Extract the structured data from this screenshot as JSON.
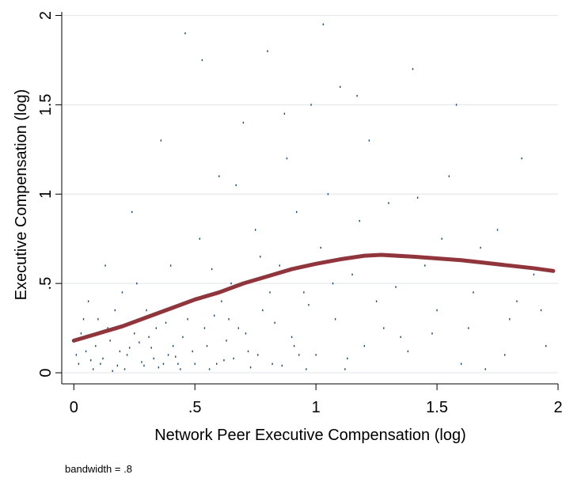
{
  "chart_data": {
    "type": "scatter",
    "x_label": "Network Peer Executive Compensation (log)",
    "y_label": "Executive Compensation (log)",
    "note": "bandwidth = .8",
    "xlim": [
      -0.05,
      2.0
    ],
    "ylim": [
      -0.062,
      2.02
    ],
    "xticks": [
      0,
      {
        "value": 0.5,
        "label": ".5"
      },
      1,
      1.5,
      2
    ],
    "yticks": [
      0,
      {
        "value": 0.5,
        "label": ".5"
      },
      1,
      1.5,
      2
    ],
    "grid": true,
    "series": [
      {
        "type": "scatter",
        "color": "#1a476f",
        "x": [
          0.02,
          0.05,
          0.08,
          0.1,
          0.12,
          0.15,
          0.18,
          0.2,
          0.22,
          0.25,
          0.28,
          0.3,
          0.32,
          0.35,
          0.38,
          0.4,
          0.42,
          0.45,
          0.48,
          0.5,
          0.52,
          0.55,
          0.58,
          0.6,
          0.62,
          0.65,
          0.68,
          0.7,
          0.72,
          0.75,
          0.78,
          0.8,
          0.82,
          0.85,
          0.88,
          0.9,
          0.92,
          0.95,
          0.98,
          1.0,
          1.02,
          1.05,
          1.08,
          1.1,
          1.12,
          1.15,
          1.18,
          1.2,
          1.22,
          1.25,
          1.3,
          1.35,
          1.4,
          1.45,
          1.5,
          1.55,
          1.6,
          1.65,
          1.7,
          1.75,
          1.8,
          1.85,
          1.9,
          1.95,
          0.03,
          0.06,
          0.09,
          0.13,
          0.16,
          0.19,
          0.24,
          0.27,
          0.33,
          0.36,
          0.44,
          0.46,
          0.53,
          0.57,
          0.63,
          0.67,
          0.73,
          0.77,
          0.83,
          0.87,
          0.93,
          0.97,
          1.03,
          1.07,
          1.13,
          1.17,
          1.28,
          1.33,
          1.38,
          1.42,
          1.48,
          1.52,
          1.58,
          1.63,
          1.68,
          1.78,
          1.83,
          1.93,
          0.11,
          0.14,
          0.21,
          0.26,
          0.31,
          0.37,
          0.41,
          0.47,
          0.56,
          0.61,
          0.66,
          0.71,
          0.76,
          0.81,
          0.86,
          0.91,
          0.96,
          0.01,
          0.04,
          0.07,
          0.17,
          0.23,
          0.29,
          0.34,
          0.39,
          0.43,
          0.49,
          0.54,
          0.59,
          0.64
        ],
        "values": [
          0.05,
          0.12,
          0.02,
          0.3,
          0.08,
          0.18,
          0.04,
          0.45,
          0.1,
          0.22,
          0.06,
          0.35,
          0.14,
          0.03,
          0.28,
          0.6,
          0.09,
          0.2,
          0.4,
          0.05,
          0.75,
          0.15,
          0.32,
          1.1,
          0.07,
          0.5,
          0.25,
          1.4,
          0.12,
          0.8,
          0.35,
          1.8,
          0.05,
          0.6,
          1.2,
          0.2,
          0.9,
          0.45,
          1.5,
          0.1,
          0.7,
          1.0,
          0.3,
          1.6,
          0.02,
          0.55,
          0.85,
          0.15,
          1.3,
          0.4,
          0.95,
          0.2,
          1.7,
          0.6,
          0.35,
          1.1,
          0.05,
          0.45,
          0.02,
          0.8,
          0.3,
          1.2,
          0.55,
          0.15,
          0.22,
          0.4,
          0.15,
          0.6,
          0.01,
          0.12,
          0.9,
          0.17,
          0.08,
          1.3,
          0.02,
          1.9,
          1.75,
          0.58,
          0.18,
          1.05,
          0.03,
          0.65,
          0.28,
          1.45,
          0.1,
          0.38,
          1.95,
          0.5,
          0.08,
          1.55,
          0.25,
          0.48,
          0.12,
          0.98,
          0.22,
          0.75,
          1.5,
          0.25,
          0.7,
          0.1,
          0.4,
          0.35,
          0.05,
          0.25,
          0.02,
          0.5,
          0.2,
          0.05,
          0.15,
          0.3,
          0.02,
          0.4,
          0.08,
          0.22,
          0.1,
          0.45,
          0.04,
          0.15,
          0.02,
          0.1,
          0.3,
          0.07,
          0.35,
          0.14,
          0.04,
          0.25,
          0.1,
          0.05,
          0.12,
          0.25,
          0.05,
          0.3
        ]
      },
      {
        "type": "line",
        "color": "#90353b",
        "x": [
          0,
          0.1,
          0.2,
          0.3,
          0.4,
          0.5,
          0.6,
          0.7,
          0.8,
          0.9,
          1.0,
          1.1,
          1.2,
          1.27,
          1.4,
          1.5,
          1.6,
          1.7,
          1.8,
          1.9,
          1.98
        ],
        "values": [
          0.18,
          0.22,
          0.26,
          0.31,
          0.36,
          0.41,
          0.45,
          0.5,
          0.54,
          0.58,
          0.61,
          0.635,
          0.655,
          0.66,
          0.65,
          0.64,
          0.63,
          0.615,
          0.6,
          0.585,
          0.57
        ]
      }
    ]
  }
}
